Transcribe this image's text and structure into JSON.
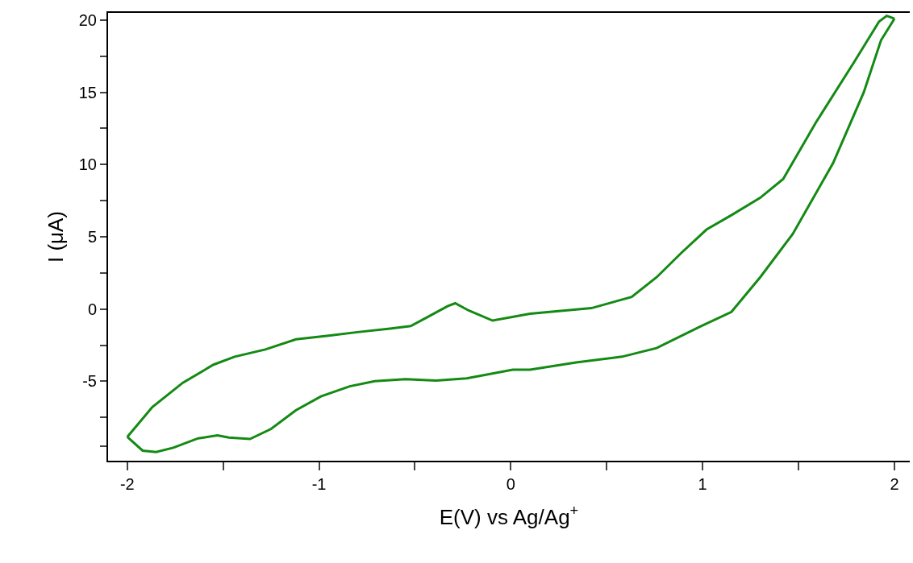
{
  "chart_data": {
    "type": "line",
    "xlabel": "E(V) vs Ag/Ag$^{+}$",
    "ylabel": "I (μA)",
    "xlim": [
      -2.1,
      2.08
    ],
    "ylim": [
      -10.5,
      20.5
    ],
    "xticks": [
      -2,
      {
        "value": -1.5,
        "label": null
      },
      -1,
      {
        "value": -0.5,
        "label": null
      },
      0,
      {
        "value": 0.5,
        "label": null
      },
      1,
      {
        "value": 1.5,
        "label": null
      },
      2
    ],
    "yticks": [
      {
        "value": -9.5,
        "label": null
      },
      {
        "value": -7.5,
        "label": null
      },
      -5,
      {
        "value": -2.5,
        "label": null
      },
      0,
      {
        "value": 2.5,
        "label": null
      },
      5,
      {
        "value": 7.5,
        "label": null
      },
      10,
      {
        "value": 12.5,
        "label": null
      },
      15,
      {
        "value": 17.5,
        "label": null
      },
      20
    ],
    "marker": "none",
    "line_style": "solid",
    "series": [
      {
        "color": "#148a14",
        "x": [
          -2.0,
          -1.87,
          -1.71,
          -1.55,
          -1.44,
          -1.28,
          -1.12,
          -0.95,
          -0.8,
          -0.63,
          -0.52,
          -0.44,
          -0.33,
          -0.29,
          -0.22,
          -0.095,
          0.1,
          0.42,
          0.63,
          0.76,
          0.89,
          1.02,
          1.15,
          1.3,
          1.42,
          1.59,
          1.79,
          1.92,
          1.96,
          2.0
        ],
        "values": [
          -8.85,
          -6.8,
          -5.1,
          -3.85,
          -3.3,
          -2.8,
          -2.1,
          -1.85,
          -1.6,
          -1.35,
          -1.17,
          -0.6,
          0.2,
          0.4,
          -0.1,
          -0.8,
          -0.33,
          0.06,
          0.84,
          2.2,
          3.9,
          5.5,
          6.5,
          7.7,
          9.0,
          12.9,
          17.1,
          19.9,
          20.3,
          20.1
        ]
      },
      {
        "color": "#148a14",
        "x": [
          2.0,
          1.93,
          1.84,
          1.68,
          1.47,
          1.3,
          1.15,
          0.99,
          0.76,
          0.58,
          0.34,
          0.1,
          0.01,
          -0.23,
          -0.39,
          -0.55,
          -0.71,
          -0.84,
          -0.99,
          -1.12,
          -1.25,
          -1.36,
          -1.47,
          -1.53,
          -1.63,
          -1.76,
          -1.85,
          -1.92,
          -2.0
        ],
        "values": [
          20.1,
          18.6,
          15.0,
          10.1,
          5.2,
          2.2,
          -0.2,
          -1.2,
          -2.7,
          -3.3,
          -3.7,
          -4.2,
          -4.2,
          -4.8,
          -4.95,
          -4.85,
          -5.0,
          -5.35,
          -6.05,
          -7.0,
          -8.3,
          -9.0,
          -8.9,
          -8.75,
          -8.95,
          -9.6,
          -9.9,
          -9.8,
          -8.85
        ]
      }
    ]
  }
}
